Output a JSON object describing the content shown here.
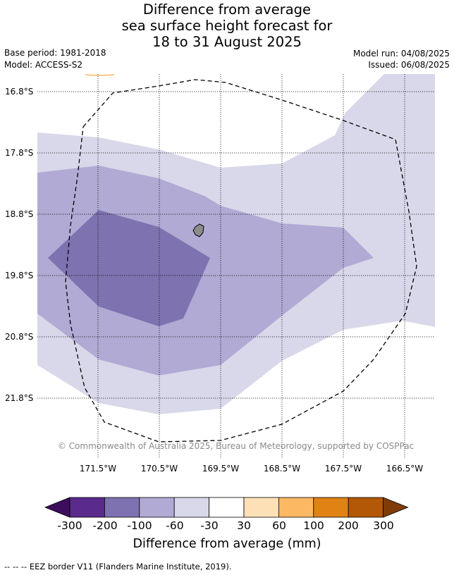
{
  "title": {
    "line1": "Difference from average",
    "line2": "sea surface height forecast for",
    "line3": "18 to 31 August 2025"
  },
  "meta": {
    "base_period": "Base period: 1981-2018",
    "model": "Model: ACCESS-S2",
    "model_run": "Model run: 04/08/2025",
    "issued": "Issued: 06/08/2025"
  },
  "map": {
    "latitude_labels": [
      "16.8°S",
      "17.8°S",
      "18.8°S",
      "19.8°S",
      "20.8°S",
      "21.8°S"
    ],
    "longitude_labels": [
      "171.5°W",
      "170.5°W",
      "169.5°W",
      "168.5°W",
      "167.5°W",
      "166.5°W"
    ],
    "copyright": "© Commonwealth of Australia 2025, Bureau of Meteorology, supported by COSPPac",
    "colors": {
      "band_-60_-30": "#d8d8ea",
      "band_-100_-60": "#b0aad4",
      "band_-200_-100": "#7f72b0",
      "land": "#8c8c8c"
    }
  },
  "colorbar": {
    "ticks": [
      "-300",
      "-200",
      "-100",
      "-60",
      "-30",
      "30",
      "60",
      "100",
      "200",
      "300"
    ],
    "colors": [
      "#3d0e5e",
      "#5a2a8c",
      "#7f72b0",
      "#b0aad4",
      "#d8d8ea",
      "#ffffff",
      "#fee0b6",
      "#fdb863",
      "#e08214",
      "#b35806",
      "#7f3b08"
    ],
    "title": "Difference from average (mm)"
  },
  "footer": "--  --  -- EEZ border V11 (Flanders Marine Institute, 2019)."
}
